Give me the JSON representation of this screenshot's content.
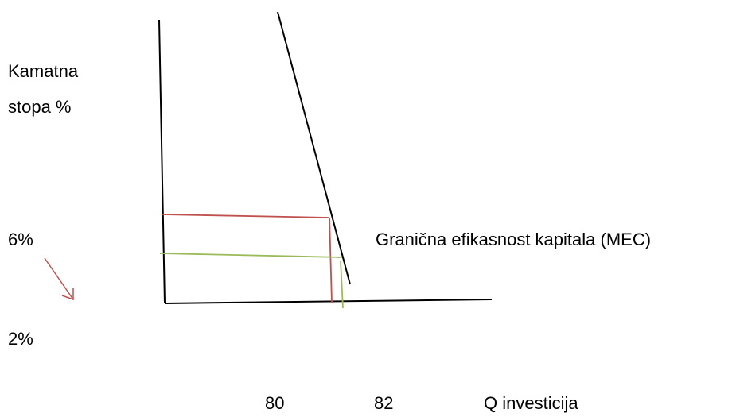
{
  "y_axis_label": {
    "lines": [
      "Kamatna",
      "stopa %"
    ]
  },
  "rate_labels": [
    "6%",
    "2%"
  ],
  "curve_label": "Granična efikasnost kapitala (MEC)",
  "quantity_labels": [
    "80",
    "82"
  ],
  "x_axis_label": "Q investicija"
}
